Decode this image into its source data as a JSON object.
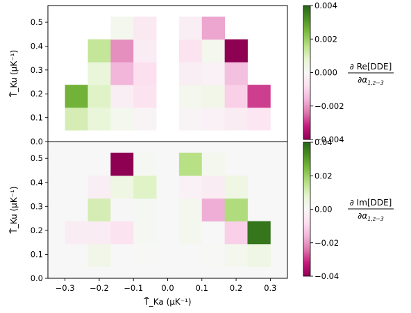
{
  "chart_data": [
    {
      "type": "heatmap",
      "panel": "top",
      "xlabel": "T̃_Ka (μK⁻¹)",
      "ylabel": "T̃_Ku (μK⁻¹)",
      "xlim": [
        -0.35,
        0.35
      ],
      "ylim": [
        0.0,
        0.57
      ],
      "x_ticks": [
        -0.3,
        -0.2,
        -0.1,
        0.0,
        0.1,
        0.2,
        0.3
      ],
      "x_tick_labels": [],
      "y_ticks": [
        0.0,
        0.1,
        0.2,
        0.3,
        0.4,
        0.5
      ],
      "y_tick_labels": [
        "0.0",
        "0.1",
        "0.2",
        "0.3",
        "0.4",
        "0.5"
      ],
      "x_bin_edges": [
        -0.3,
        -0.2333,
        -0.1667,
        -0.1,
        -0.0333,
        0.0333,
        0.1,
        0.1667,
        0.2333,
        0.3
      ],
      "y_bin_edges": [
        0.0476,
        0.1429,
        0.2381,
        0.3333,
        0.4286,
        0.5238
      ],
      "colorbar": {
        "vmin": -0.004,
        "vmax": 0.004,
        "ticks": [
          -0.004,
          -0.002,
          0.0,
          0.002,
          0.004
        ],
        "tick_labels": [
          "−0.004",
          "−0.002",
          "0.000",
          "0.002",
          "0.004"
        ],
        "colormap": "PiYG",
        "label_top": "∂ Re[DDE]",
        "label_bottom": "∂α",
        "label_bottom_sub": "1,z∼3"
      },
      "cells": [
        {
          "x": -0.2667,
          "y": 0.0952,
          "value": 0.0011
        },
        {
          "x": -0.2,
          "y": 0.0952,
          "value": 0.0006
        },
        {
          "x": -0.1333,
          "y": 0.0952,
          "value": 0.0002
        },
        {
          "x": -0.0667,
          "y": 0.0952,
          "value": -0.0001
        },
        {
          "x": 0.0667,
          "y": 0.0952,
          "value": -0.0001
        },
        {
          "x": 0.1333,
          "y": 0.0952,
          "value": -0.0002
        },
        {
          "x": 0.2,
          "y": 0.0952,
          "value": -0.0004
        },
        {
          "x": 0.2667,
          "y": 0.0952,
          "value": -0.0006
        },
        {
          "x": -0.2667,
          "y": 0.1905,
          "value": 0.0026
        },
        {
          "x": -0.2,
          "y": 0.1905,
          "value": 0.0009
        },
        {
          "x": -0.1333,
          "y": 0.1905,
          "value": -0.0003
        },
        {
          "x": -0.0667,
          "y": 0.1905,
          "value": -0.0007
        },
        {
          "x": 0.0667,
          "y": 0.1905,
          "value": 0.0002
        },
        {
          "x": 0.1333,
          "y": 0.1905,
          "value": 0.0003
        },
        {
          "x": 0.2,
          "y": 0.1905,
          "value": -0.0011
        },
        {
          "x": 0.2667,
          "y": 0.1905,
          "value": -0.0029
        },
        {
          "x": -0.2,
          "y": 0.2857,
          "value": 0.0006
        },
        {
          "x": -0.1333,
          "y": 0.2857,
          "value": -0.0016
        },
        {
          "x": -0.0667,
          "y": 0.2857,
          "value": -0.0008
        },
        {
          "x": 0.0667,
          "y": 0.2857,
          "value": -0.0003
        },
        {
          "x": 0.1333,
          "y": 0.2857,
          "value": -0.0002
        },
        {
          "x": 0.2,
          "y": 0.2857,
          "value": -0.0014
        },
        {
          "x": -0.2,
          "y": 0.381,
          "value": 0.0014
        },
        {
          "x": -0.1333,
          "y": 0.381,
          "value": -0.0021
        },
        {
          "x": -0.0667,
          "y": 0.381,
          "value": -0.0004
        },
        {
          "x": 0.0667,
          "y": 0.381,
          "value": -0.0007
        },
        {
          "x": 0.1333,
          "y": 0.381,
          "value": 0.0002
        },
        {
          "x": 0.2,
          "y": 0.381,
          "value": -0.0041
        },
        {
          "x": -0.1333,
          "y": 0.4762,
          "value": 0.0002
        },
        {
          "x": -0.0667,
          "y": 0.4762,
          "value": -0.0005
        },
        {
          "x": 0.0667,
          "y": 0.4762,
          "value": -0.0003
        },
        {
          "x": 0.1333,
          "y": 0.4762,
          "value": -0.0018
        }
      ]
    },
    {
      "type": "heatmap",
      "panel": "bottom",
      "xlabel": "T̃_Ka (μK⁻¹)",
      "ylabel": "T̃_Ku (μK⁻¹)",
      "xlim": [
        -0.35,
        0.35
      ],
      "ylim": [
        0.0,
        0.57
      ],
      "x_ticks": [
        -0.3,
        -0.2,
        -0.1,
        0.0,
        0.1,
        0.2,
        0.3
      ],
      "x_tick_labels": [
        "−0.3",
        "−0.2",
        "−0.1",
        "0.0",
        "0.1",
        "0.2",
        "0.3"
      ],
      "y_ticks": [
        0.0,
        0.1,
        0.2,
        0.3,
        0.4,
        0.5
      ],
      "y_tick_labels": [
        "0.0",
        "0.1",
        "0.2",
        "0.3",
        "0.4",
        "0.5"
      ],
      "x_bin_edges": [
        -0.3,
        -0.2333,
        -0.1667,
        -0.1,
        -0.0333,
        0.0333,
        0.1,
        0.1667,
        0.2333,
        0.3
      ],
      "y_bin_edges": [
        0.0476,
        0.1429,
        0.2381,
        0.3333,
        0.4286,
        0.5238
      ],
      "background_value": 0.0,
      "colorbar": {
        "vmin": -0.04,
        "vmax": 0.04,
        "ticks": [
          -0.04,
          -0.02,
          0.0,
          0.02,
          0.04
        ],
        "tick_labels": [
          "−0.04",
          "−0.02",
          "0.00",
          "0.02",
          "0.04"
        ],
        "colormap": "PiYG",
        "label_top": "∂ Im[DDE]",
        "label_bottom": "∂α",
        "label_bottom_sub": "1,z∼3"
      },
      "cells": [
        {
          "x": -0.2667,
          "y": 0.0952,
          "value": -0.0001
        },
        {
          "x": -0.2,
          "y": 0.0952,
          "value": 0.003
        },
        {
          "x": -0.1333,
          "y": 0.0952,
          "value": 0.0003
        },
        {
          "x": -0.0667,
          "y": 0.0952,
          "value": 0.0002
        },
        {
          "x": 0.0667,
          "y": 0.0952,
          "value": 0.0
        },
        {
          "x": 0.1333,
          "y": 0.0952,
          "value": 0.0002
        },
        {
          "x": 0.2,
          "y": 0.0952,
          "value": 0.002
        },
        {
          "x": 0.2667,
          "y": 0.0952,
          "value": 0.004
        },
        {
          "x": -0.2667,
          "y": 0.1905,
          "value": -0.004
        },
        {
          "x": -0.2,
          "y": 0.1905,
          "value": -0.004
        },
        {
          "x": -0.1333,
          "y": 0.1905,
          "value": -0.007
        },
        {
          "x": -0.0667,
          "y": 0.1905,
          "value": 0.001
        },
        {
          "x": 0.0667,
          "y": 0.1905,
          "value": 0.002
        },
        {
          "x": 0.1333,
          "y": 0.1905,
          "value": 0.0003
        },
        {
          "x": 0.2,
          "y": 0.1905,
          "value": -0.011
        },
        {
          "x": 0.2667,
          "y": 0.1905,
          "value": 0.037
        },
        {
          "x": -0.2,
          "y": 0.2857,
          "value": 0.011
        },
        {
          "x": -0.1333,
          "y": 0.2857,
          "value": -0.0005
        },
        {
          "x": -0.0667,
          "y": 0.2857,
          "value": 0.001
        },
        {
          "x": 0.0667,
          "y": 0.2857,
          "value": 0.002
        },
        {
          "x": 0.1333,
          "y": 0.2857,
          "value": -0.017
        },
        {
          "x": 0.2,
          "y": 0.2857,
          "value": 0.017
        },
        {
          "x": -0.2,
          "y": 0.381,
          "value": -0.003
        },
        {
          "x": -0.1333,
          "y": 0.381,
          "value": 0.004
        },
        {
          "x": -0.0667,
          "y": 0.381,
          "value": 0.009
        },
        {
          "x": 0.0667,
          "y": 0.381,
          "value": -0.002
        },
        {
          "x": 0.1333,
          "y": 0.381,
          "value": -0.004
        },
        {
          "x": 0.2,
          "y": 0.381,
          "value": 0.004
        },
        {
          "x": -0.1333,
          "y": 0.4762,
          "value": -0.04
        },
        {
          "x": -0.0667,
          "y": 0.4762,
          "value": 0.001
        },
        {
          "x": 0.0667,
          "y": 0.4762,
          "value": 0.016
        },
        {
          "x": 0.1333,
          "y": 0.4762,
          "value": 0.002
        }
      ]
    }
  ]
}
